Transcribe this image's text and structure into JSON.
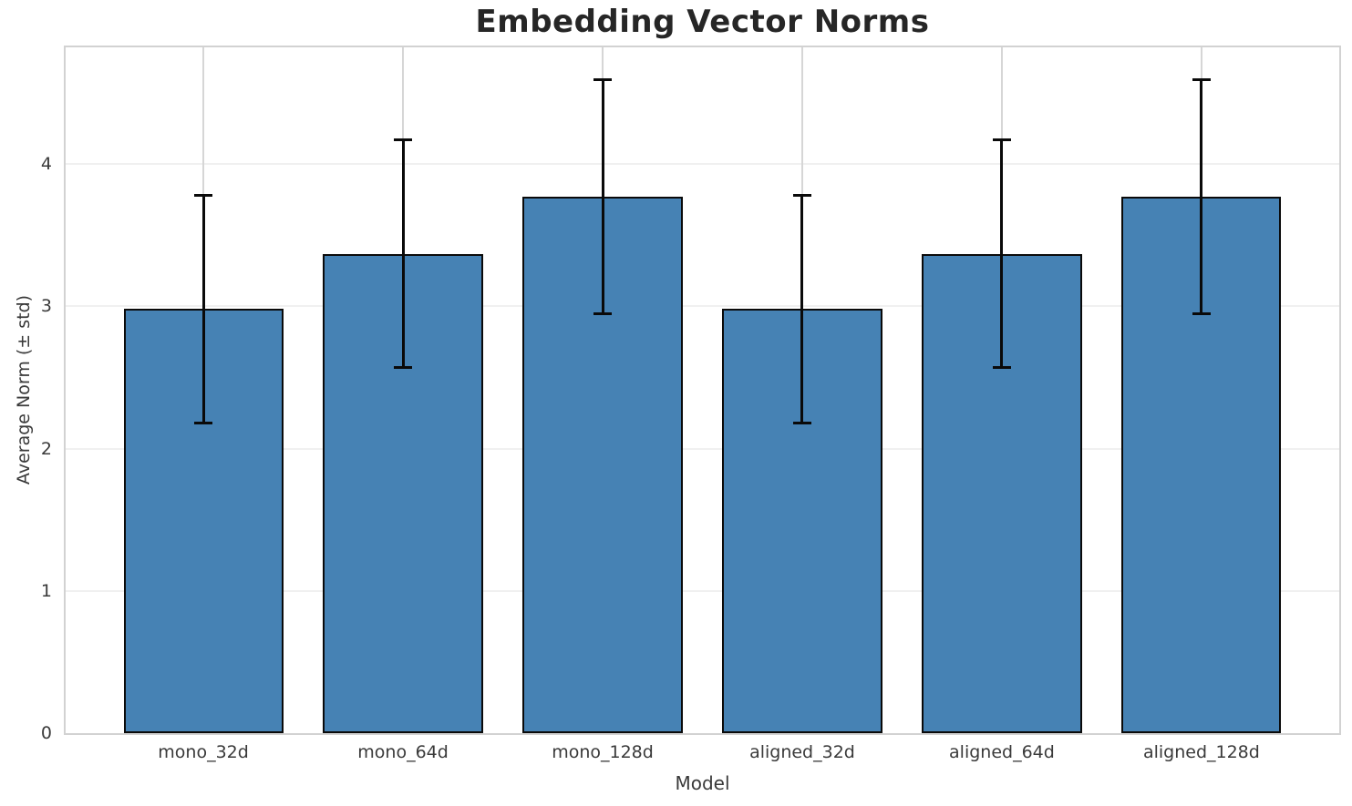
{
  "chart_data": {
    "type": "bar",
    "title": "Embedding Vector Norms",
    "xlabel": "Model",
    "ylabel": "Average Norm (± std)",
    "categories": [
      "mono_32d",
      "mono_64d",
      "mono_128d",
      "aligned_32d",
      "aligned_64d",
      "aligned_128d"
    ],
    "series": [
      {
        "name": "average_norm",
        "values": [
          2.98,
          3.37,
          3.77,
          2.98,
          3.37,
          3.77
        ]
      },
      {
        "name": "std",
        "values": [
          0.8,
          0.8,
          0.82,
          0.8,
          0.8,
          0.82
        ]
      }
    ],
    "error_bars": true,
    "yticks": [
      0,
      1,
      2,
      3,
      4
    ],
    "ylim": [
      0,
      4.82
    ],
    "xlim": [
      -0.69,
      5.69
    ],
    "bar_width": 0.8,
    "grid": "both",
    "legend": "none",
    "colors": {
      "bar_fill": "#4682B4",
      "bar_edge": "#0a0a0a",
      "error_bar": "#0a0a0a",
      "h_grid": "#f0f0f0",
      "v_grid": "#d6d6d6",
      "spine": "#d2d2d2",
      "title_text": "#262626",
      "tick_text": "#3a3a3a"
    }
  }
}
